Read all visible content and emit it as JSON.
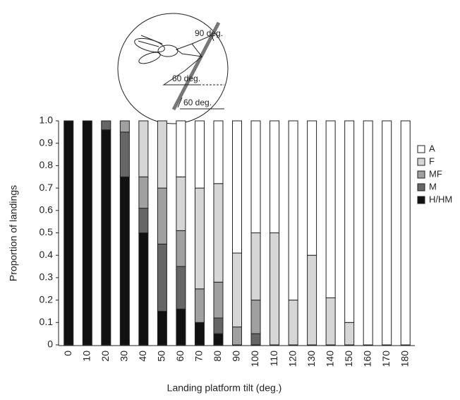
{
  "chart_data": {
    "type": "stacked_bar",
    "xlabel": "Landing platform tilt (deg.)",
    "ylabel": "Proportion of landings",
    "categories": [
      "0",
      "10",
      "20",
      "30",
      "40",
      "50",
      "60",
      "70",
      "80",
      "90",
      "100",
      "110",
      "120",
      "130",
      "140",
      "150",
      "160",
      "170",
      "180"
    ],
    "series": [
      {
        "name": "H/HM",
        "color": "#111111",
        "values": [
          1.0,
          1.0,
          0.96,
          0.75,
          0.5,
          0.15,
          0.16,
          0.1,
          0.05,
          0,
          0,
          0,
          0,
          0,
          0,
          0,
          0,
          0,
          0
        ]
      },
      {
        "name": "M",
        "color": "#666666",
        "values": [
          0,
          0,
          0.04,
          0.2,
          0.11,
          0.3,
          0.19,
          0,
          0.07,
          0,
          0.05,
          0,
          0,
          0,
          0,
          0,
          0,
          0,
          0
        ]
      },
      {
        "name": "MF",
        "color": "#a0a0a0",
        "values": [
          0,
          0,
          0,
          0.05,
          0.14,
          0.25,
          0.16,
          0.15,
          0.16,
          0.08,
          0.15,
          0,
          0,
          0,
          0,
          0,
          0,
          0,
          0
        ]
      },
      {
        "name": "F",
        "color": "#d6d6d6",
        "values": [
          0,
          0,
          0,
          0,
          0.25,
          0.3,
          0.24,
          0.45,
          0.44,
          0.33,
          0.3,
          0.5,
          0.2,
          0.4,
          0.21,
          0.1,
          0,
          0,
          0
        ]
      },
      {
        "name": "A",
        "color": "#ffffff",
        "values": [
          0,
          0,
          0,
          0,
          0,
          0,
          0.25,
          0.3,
          0.28,
          0.59,
          0.5,
          0.5,
          0.8,
          0.6,
          0.79,
          0.9,
          1.0,
          1.0,
          1.0
        ]
      }
    ],
    "ylim": [
      0,
      1
    ],
    "yticks": [
      0,
      0.1,
      0.2,
      0.3,
      0.4,
      0.5,
      0.6,
      0.7,
      0.8,
      0.9,
      {
        "value": 1,
        "label": "1.0"
      }
    ],
    "legend": "upper right",
    "annotations": [
      "90 deg.",
      "60 deg.",
      "60 deg."
    ]
  }
}
